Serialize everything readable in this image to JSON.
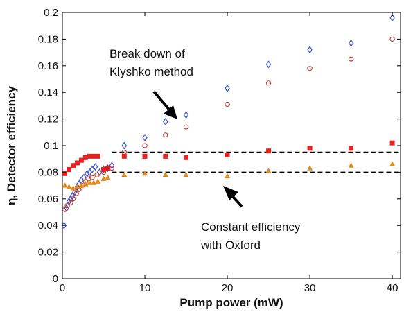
{
  "chart_data": {
    "type": "scatter",
    "xlabel": "Pump power (mW)",
    "ylabel": "η, Detector efficiency",
    "xlim": [
      0,
      41
    ],
    "ylim": [
      0,
      0.2
    ],
    "xticks": [
      "0",
      "10",
      "20",
      "30",
      "40"
    ],
    "yticks": [
      "0",
      "0.02",
      "0.04",
      "0.06",
      "0.08",
      "0.1",
      "0.12",
      "0.14",
      "0.16",
      "0.18",
      "0.2"
    ],
    "grid": false,
    "series": [
      {
        "marker": "diamond-open",
        "color": "#3a4fc4",
        "points": [
          [
            0.2,
            0.04
          ],
          [
            0.5,
            0.053
          ],
          [
            0.8,
            0.058
          ],
          [
            1.0,
            0.06
          ],
          [
            1.2,
            0.062
          ],
          [
            1.5,
            0.065
          ],
          [
            1.8,
            0.069
          ],
          [
            2.0,
            0.071
          ],
          [
            2.3,
            0.074
          ],
          [
            2.6,
            0.076
          ],
          [
            3.0,
            0.079
          ],
          [
            3.3,
            0.08
          ],
          [
            3.6,
            0.082
          ],
          [
            4.0,
            0.084
          ],
          [
            4.5,
            0.08
          ],
          [
            5.0,
            0.082
          ],
          [
            5.5,
            0.083
          ],
          [
            6.0,
            0.085
          ],
          [
            7.5,
            0.1
          ],
          [
            10,
            0.106
          ],
          [
            12.5,
            0.118
          ],
          [
            15,
            0.123
          ],
          [
            20,
            0.143
          ],
          [
            25,
            0.161
          ],
          [
            30,
            0.172
          ],
          [
            35,
            0.177
          ],
          [
            40,
            0.196
          ]
        ]
      },
      {
        "marker": "circle-open",
        "color": "#c0392b",
        "points": [
          [
            0.3,
            0.052
          ],
          [
            0.6,
            0.055
          ],
          [
            1.0,
            0.057
          ],
          [
            1.3,
            0.06
          ],
          [
            1.7,
            0.064
          ],
          [
            2.0,
            0.067
          ],
          [
            2.4,
            0.07
          ],
          [
            2.8,
            0.073
          ],
          [
            3.2,
            0.075
          ],
          [
            3.6,
            0.076
          ],
          [
            4.2,
            0.078
          ],
          [
            5.0,
            0.08
          ],
          [
            6.0,
            0.083
          ],
          [
            7.5,
            0.095
          ],
          [
            10,
            0.1
          ],
          [
            12.5,
            0.108
          ],
          [
            15,
            0.114
          ],
          [
            20,
            0.131
          ],
          [
            25,
            0.147
          ],
          [
            30,
            0.158
          ],
          [
            35,
            0.165
          ],
          [
            40,
            0.18
          ]
        ]
      },
      {
        "marker": "square-filled",
        "color": "#e32222",
        "points": [
          [
            0.3,
            0.079
          ],
          [
            0.8,
            0.082
          ],
          [
            1.3,
            0.085
          ],
          [
            1.8,
            0.087
          ],
          [
            2.3,
            0.089
          ],
          [
            2.8,
            0.091
          ],
          [
            3.3,
            0.092
          ],
          [
            3.8,
            0.092
          ],
          [
            4.3,
            0.092
          ],
          [
            5.0,
            0.082
          ],
          [
            5.5,
            0.083
          ],
          [
            7.5,
            0.092
          ],
          [
            10,
            0.092
          ],
          [
            12.5,
            0.092
          ],
          [
            15,
            0.091
          ],
          [
            20,
            0.093
          ],
          [
            25,
            0.096
          ],
          [
            30,
            0.098
          ],
          [
            35,
            0.098
          ],
          [
            40,
            0.102
          ]
        ]
      },
      {
        "marker": "triangle-filled",
        "color": "#e08a1e",
        "points": [
          [
            0.3,
            0.07
          ],
          [
            0.8,
            0.069
          ],
          [
            1.3,
            0.068
          ],
          [
            1.8,
            0.069
          ],
          [
            2.3,
            0.07
          ],
          [
            2.8,
            0.071
          ],
          [
            3.3,
            0.072
          ],
          [
            3.8,
            0.072
          ],
          [
            4.3,
            0.073
          ],
          [
            5.0,
            0.075
          ],
          [
            5.5,
            0.076
          ],
          [
            7.5,
            0.078
          ],
          [
            10,
            0.079
          ],
          [
            12.5,
            0.078
          ],
          [
            15,
            0.078
          ],
          [
            20,
            0.077
          ],
          [
            25,
            0.081
          ],
          [
            30,
            0.083
          ],
          [
            35,
            0.085
          ],
          [
            40,
            0.086
          ]
        ]
      }
    ],
    "reference_lines": [
      {
        "y": 0.095,
        "x_range": [
          6,
          41
        ],
        "style": "dashed",
        "color": "#000000"
      },
      {
        "y": 0.08,
        "x_range": [
          6,
          41
        ],
        "style": "dashed",
        "color": "#000000"
      }
    ],
    "annotations": [
      {
        "lines": [
          "Break down of",
          "Klyshko method"
        ],
        "arrow_to": [
          13.5,
          0.12
        ]
      },
      {
        "lines": [
          "Constant efficiency",
          "with Oxford"
        ],
        "arrow_to": [
          20,
          0.079
        ]
      }
    ]
  }
}
